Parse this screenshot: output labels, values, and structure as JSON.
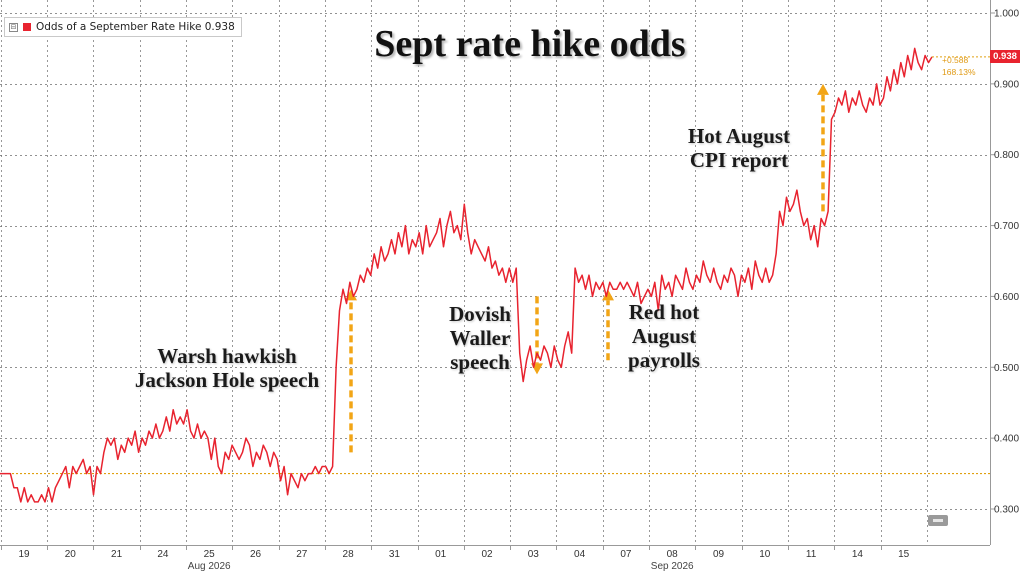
{
  "legend": {
    "toggle": "⊟",
    "label": "Odds of a September Rate Hike 0.938"
  },
  "title": "Sept rate hike odds",
  "annotations": {
    "warsh": [
      "Warsh hawkish",
      "Jackson Hole speech"
    ],
    "dovish": [
      "Dovish",
      "Waller",
      "speech"
    ],
    "payrolls": [
      "Red hot",
      "August",
      "payrolls"
    ],
    "cpi": [
      "Hot August",
      "CPI report"
    ]
  },
  "last_value": {
    "value": "0.938",
    "change": "+0.588",
    "change_pct": "168.13%"
  },
  "colors": {
    "line": "#e8232f",
    "reference": "#e0a010",
    "arrow": "#f2a516",
    "grid": "#6e6e6e"
  },
  "chart_data": {
    "type": "line",
    "x_labels": [
      "19",
      "20",
      "21",
      "24",
      "25",
      "26",
      "27",
      "28",
      "31",
      "01",
      "02",
      "03",
      "04",
      "07",
      "08",
      "09",
      "10",
      "11",
      "14",
      "15"
    ],
    "month_labels": [
      {
        "text": "Aug 2026",
        "at": "25"
      },
      {
        "text": "Sep 2026",
        "at": "08"
      }
    ],
    "y_ticks": [
      "0.300",
      "0.400",
      "0.500",
      "0.600",
      "0.700",
      "0.800",
      "0.900",
      "1.000"
    ],
    "ylim": [
      0.285,
      1.005
    ],
    "reference_value": 0.35,
    "series": [
      {
        "values": [
          0.35,
          0.35,
          0.35,
          0.35,
          0.33,
          0.33,
          0.31,
          0.33,
          0.31,
          0.32,
          0.31,
          0.31,
          0.32,
          0.31,
          0.33,
          0.31,
          0.33,
          0.34,
          0.35,
          0.36,
          0.33,
          0.36,
          0.35,
          0.36,
          0.37,
          0.35,
          0.36,
          0.32,
          0.36,
          0.35,
          0.38,
          0.4,
          0.39,
          0.4,
          0.37,
          0.39,
          0.38,
          0.4,
          0.39,
          0.41,
          0.38,
          0.4,
          0.39,
          0.41,
          0.4,
          0.42,
          0.4,
          0.41,
          0.43,
          0.41,
          0.44,
          0.42,
          0.43,
          0.42,
          0.44,
          0.41,
          0.4,
          0.42,
          0.4,
          0.41,
          0.4,
          0.37,
          0.4,
          0.36,
          0.35,
          0.38,
          0.37,
          0.39,
          0.38,
          0.37,
          0.38,
          0.4,
          0.39,
          0.36,
          0.38,
          0.37,
          0.39,
          0.38,
          0.36,
          0.38,
          0.37,
          0.34,
          0.36,
          0.32,
          0.35,
          0.34,
          0.33,
          0.35,
          0.34,
          0.35,
          0.35,
          0.36,
          0.35,
          0.36,
          0.36,
          0.35,
          0.36,
          0.5,
          0.58,
          0.61,
          0.59,
          0.62,
          0.6,
          0.61,
          0.63,
          0.62,
          0.64,
          0.63,
          0.66,
          0.64,
          0.67,
          0.65,
          0.66,
          0.68,
          0.66,
          0.69,
          0.67,
          0.7,
          0.66,
          0.68,
          0.67,
          0.69,
          0.66,
          0.7,
          0.67,
          0.68,
          0.69,
          0.71,
          0.67,
          0.7,
          0.72,
          0.69,
          0.7,
          0.68,
          0.73,
          0.69,
          0.66,
          0.68,
          0.67,
          0.66,
          0.65,
          0.67,
          0.64,
          0.65,
          0.63,
          0.64,
          0.62,
          0.64,
          0.62,
          0.64,
          0.52,
          0.48,
          0.51,
          0.53,
          0.5,
          0.52,
          0.51,
          0.53,
          0.52,
          0.5,
          0.53,
          0.51,
          0.5,
          0.53,
          0.55,
          0.52,
          0.64,
          0.62,
          0.63,
          0.61,
          0.63,
          0.6,
          0.62,
          0.61,
          0.62,
          0.6,
          0.62,
          0.61,
          0.61,
          0.62,
          0.61,
          0.62,
          0.61,
          0.6,
          0.62,
          0.59,
          0.6,
          0.61,
          0.6,
          0.62,
          0.58,
          0.63,
          0.61,
          0.62,
          0.6,
          0.63,
          0.62,
          0.61,
          0.64,
          0.62,
          0.61,
          0.63,
          0.62,
          0.65,
          0.63,
          0.62,
          0.64,
          0.62,
          0.61,
          0.63,
          0.62,
          0.64,
          0.63,
          0.6,
          0.63,
          0.62,
          0.64,
          0.61,
          0.65,
          0.63,
          0.62,
          0.64,
          0.62,
          0.63,
          0.66,
          0.72,
          0.7,
          0.74,
          0.72,
          0.73,
          0.75,
          0.72,
          0.7,
          0.71,
          0.68,
          0.7,
          0.67,
          0.71,
          0.7,
          0.72,
          0.85,
          0.86,
          0.88,
          0.87,
          0.89,
          0.86,
          0.88,
          0.87,
          0.89,
          0.87,
          0.86,
          0.88,
          0.87,
          0.9,
          0.87,
          0.88,
          0.91,
          0.89,
          0.92,
          0.9,
          0.93,
          0.91,
          0.94,
          0.92,
          0.95,
          0.93,
          0.92,
          0.94,
          0.93,
          0.938
        ]
      }
    ]
  }
}
